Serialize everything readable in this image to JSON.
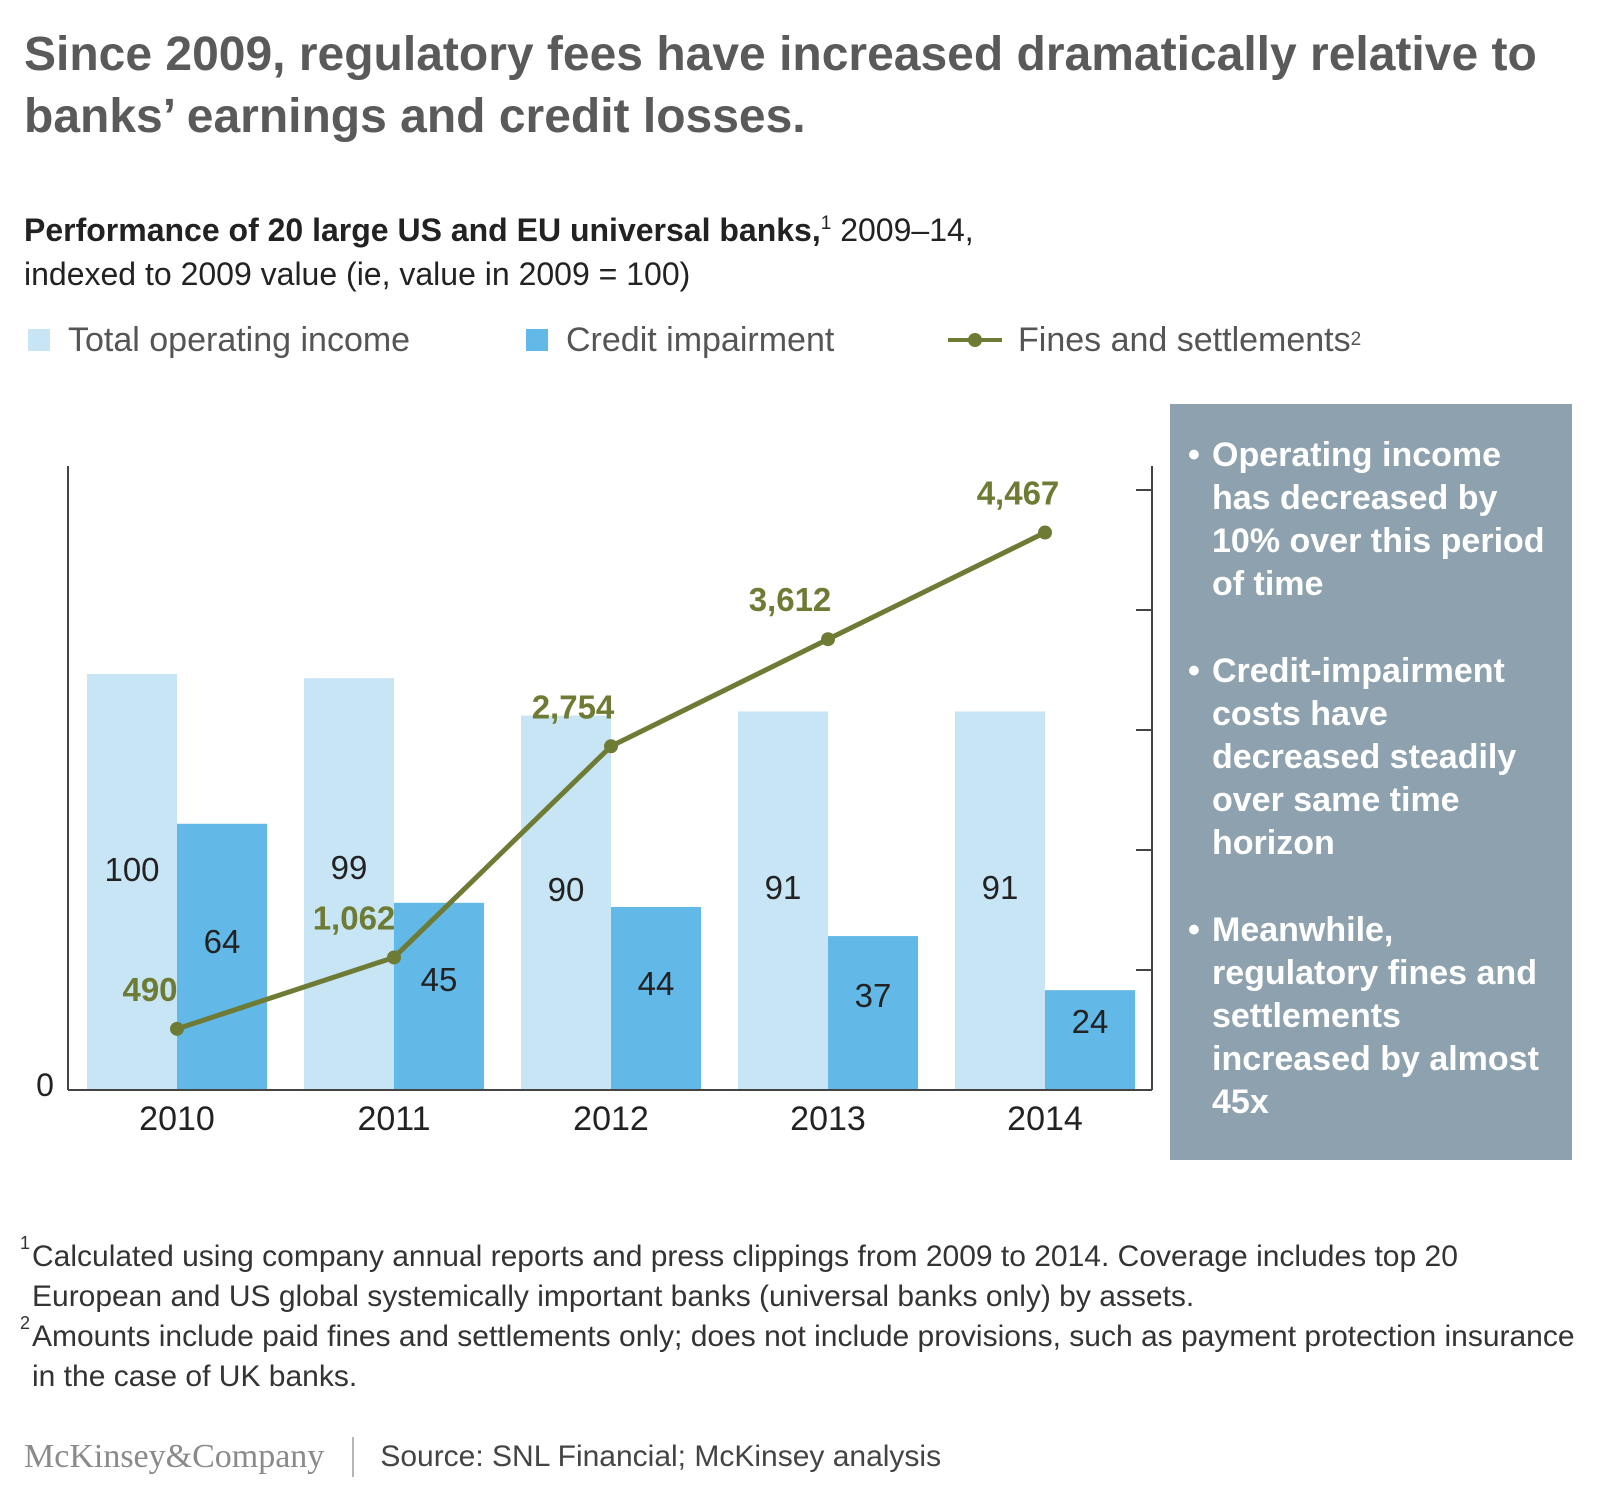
{
  "title": "Since 2009, regulatory fees have increased dramatically relative to banks’ earnings and credit losses.",
  "subtitle": {
    "bold": "Performance of 20 large US and EU universal banks,",
    "bold_sup": "1",
    "period": " 2009–14,",
    "line2": "indexed to 2009 value (ie, value in 2009 = 100)"
  },
  "legend": {
    "income": "Total operating income",
    "credit": "Credit impairment",
    "fines": "Fines and settlements",
    "fines_sup": "2"
  },
  "colors": {
    "income": "#c7e5f5",
    "credit": "#62b8e6",
    "fines": "#6e7b35",
    "axis": "#444444",
    "callout_bg": "#8da2ae"
  },
  "chart_data": {
    "type": "bar",
    "categories": [
      "2010",
      "2011",
      "2012",
      "2013",
      "2014"
    ],
    "series": [
      {
        "name": "Total operating income",
        "type": "bar",
        "values": [
          100,
          99,
          90,
          91,
          91
        ],
        "labels": [
          "100",
          "99",
          "90",
          "91",
          "91"
        ]
      },
      {
        "name": "Credit impairment",
        "type": "bar",
        "values": [
          64,
          45,
          44,
          37,
          24
        ],
        "labels": [
          "64",
          "45",
          "44",
          "37",
          "24"
        ]
      },
      {
        "name": "Fines and settlements",
        "type": "line",
        "axis": "right",
        "values": [
          490,
          1062,
          2754,
          3612,
          4467
        ],
        "labels": [
          "490",
          "1,062",
          "2,754",
          "3,612",
          "4,467"
        ]
      }
    ],
    "left_axis": {
      "tick_label": "0",
      "ylim": [
        0,
        150
      ]
    },
    "right_axis": {
      "ylim": [
        0,
        5000
      ]
    },
    "grid": false,
    "legend_position": "top-left"
  },
  "callout": {
    "bullets": [
      "Operating income has decreased by 10% over this period of time",
      "Credit-impairment costs have decreased steadily over same time horizon",
      "Meanwhile, regulatory fines and settlements increased by almost 45x"
    ]
  },
  "footnotes": [
    {
      "mark": "1",
      "text": "Calculated using company annual reports and press clippings from 2009 to 2014. Coverage includes top 20 European and US global systemically important banks (universal banks only) by assets."
    },
    {
      "mark": "2",
      "text": "Amounts include paid fines and settlements only; does not include provisions, such as payment protection insurance in the case of UK banks."
    }
  ],
  "footer": {
    "logo": "McKinsey&Company",
    "source": "Source: SNL Financial; McKinsey analysis"
  }
}
